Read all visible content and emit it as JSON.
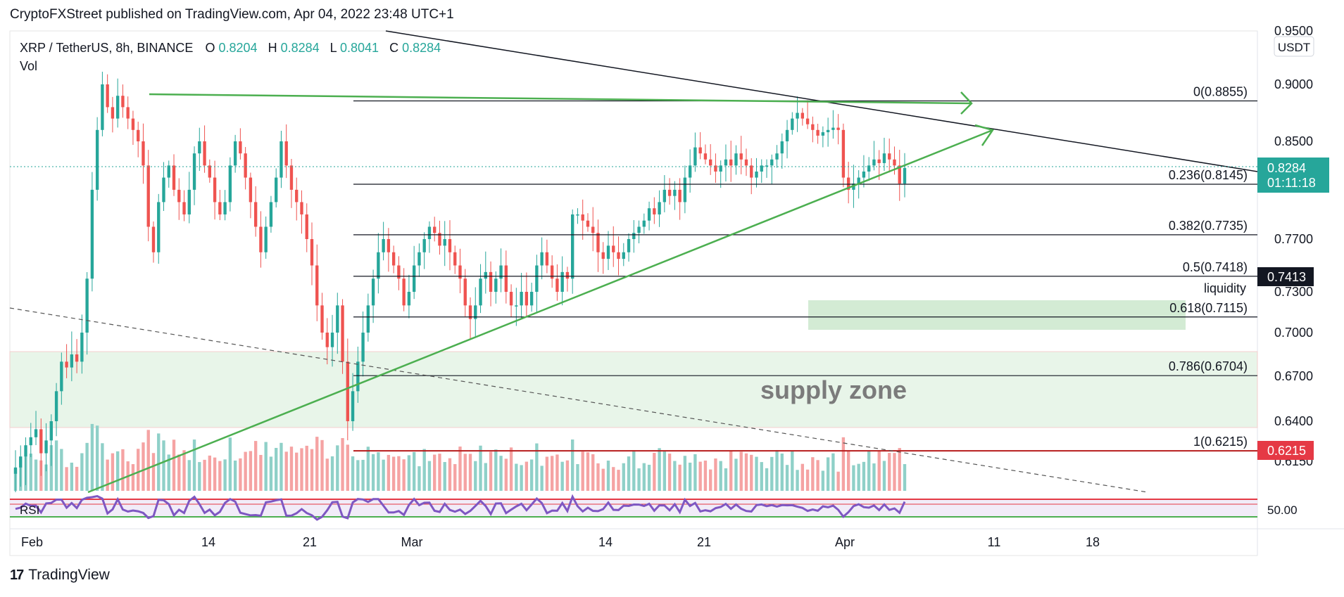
{
  "header": {
    "publisher": "CryptoFXStreet published on TradingView.com, Apr 04, 2022 23:48 UTC+1"
  },
  "legend": {
    "symbol": "XRP / TetherUS, 8h, BINANCE",
    "o_label": "O",
    "o_value": "0.8204",
    "h_label": "H",
    "h_value": "0.8284",
    "l_label": "L",
    "l_value": "0.8041",
    "c_label": "C",
    "c_value": "0.8284",
    "vol_label": "Vol",
    "rsi_label": "RSI"
  },
  "currency_badge": "USDT",
  "footer": {
    "logo": "17",
    "brand": "TradingView"
  },
  "colors": {
    "up": "#26a69a",
    "down": "#ef5350",
    "up_vol": "#8fd0c8",
    "down_vol": "#f5a3a3",
    "trendline": "#4caf50",
    "rsi": "#7e57c2",
    "price_badge": "#26a69a",
    "fib_badge": "#131722",
    "support_badge": "#e53945"
  },
  "chart_data": {
    "type": "candlestick",
    "symbol": "XRP / TetherUS",
    "timeframe": "8h",
    "exchange": "BINANCE",
    "x_tick_labels": [
      "Feb",
      "14",
      "21",
      "Mar",
      "14",
      "21",
      "Apr",
      "11",
      "18"
    ],
    "y_axis_labels": [
      "0.9500",
      "0.9000",
      "0.8500",
      "0.8145",
      "0.7700",
      "0.7300",
      "0.7000",
      "0.6700",
      "0.6400",
      "0.6150"
    ],
    "ylim": [
      0.6,
      0.95
    ],
    "last_price": "0.8284",
    "countdown": "01:11:18",
    "fib_price_badge": "0.7413",
    "support_badge": "0.6215",
    "rsi_axis_label": "50.00",
    "fibonacci": [
      {
        "label": "0(0.8855)",
        "value": 0.8855
      },
      {
        "label": "0.236(0.8145)",
        "value": 0.8145
      },
      {
        "label": "0.382(0.7735)",
        "value": 0.7735
      },
      {
        "label": "0.5(0.7418)",
        "value": 0.7418
      },
      {
        "label": "0.618(0.7115)",
        "value": 0.7115
      },
      {
        "label": "0.786(0.6704)",
        "value": 0.6704
      },
      {
        "label": "1(0.6215)",
        "value": 0.6215
      }
    ],
    "annotations": [
      "supply zone",
      "liquidity"
    ],
    "close_series": [
      0.612,
      0.618,
      0.625,
      0.63,
      0.635,
      0.62,
      0.628,
      0.64,
      0.66,
      0.68,
      0.676,
      0.685,
      0.68,
      0.7,
      0.74,
      0.81,
      0.86,
      0.9,
      0.88,
      0.87,
      0.89,
      0.88,
      0.87,
      0.86,
      0.85,
      0.83,
      0.78,
      0.76,
      0.8,
      0.82,
      0.83,
      0.81,
      0.8,
      0.79,
      0.81,
      0.84,
      0.85,
      0.83,
      0.82,
      0.8,
      0.79,
      0.8,
      0.83,
      0.85,
      0.84,
      0.82,
      0.8,
      0.78,
      0.76,
      0.78,
      0.8,
      0.82,
      0.85,
      0.83,
      0.81,
      0.8,
      0.79,
      0.77,
      0.75,
      0.72,
      0.7,
      0.69,
      0.7,
      0.72,
      0.68,
      0.64,
      0.66,
      0.68,
      0.7,
      0.72,
      0.74,
      0.76,
      0.77,
      0.76,
      0.75,
      0.74,
      0.72,
      0.73,
      0.75,
      0.76,
      0.77,
      0.78,
      0.775,
      0.765,
      0.77,
      0.76,
      0.75,
      0.74,
      0.72,
      0.71,
      0.72,
      0.74,
      0.745,
      0.73,
      0.74,
      0.75,
      0.73,
      0.72,
      0.72,
      0.73,
      0.72,
      0.73,
      0.75,
      0.76,
      0.75,
      0.74,
      0.73,
      0.745,
      0.74,
      0.79,
      0.79,
      0.785,
      0.78,
      0.775,
      0.76,
      0.755,
      0.765,
      0.76,
      0.755,
      0.76,
      0.77,
      0.775,
      0.78,
      0.785,
      0.795,
      0.79,
      0.8,
      0.81,
      0.805,
      0.81,
      0.8,
      0.82,
      0.83,
      0.845,
      0.84,
      0.835,
      0.83,
      0.825,
      0.83,
      0.835,
      0.83,
      0.84,
      0.835,
      0.83,
      0.82,
      0.825,
      0.83,
      0.83,
      0.835,
      0.84,
      0.85,
      0.86,
      0.87,
      0.875,
      0.87,
      0.865,
      0.86,
      0.855,
      0.858,
      0.86,
      0.862,
      0.86,
      0.82,
      0.81,
      0.815,
      0.82,
      0.825,
      0.83,
      0.835,
      0.832,
      0.84,
      0.835,
      0.83,
      0.815,
      0.828
    ]
  }
}
